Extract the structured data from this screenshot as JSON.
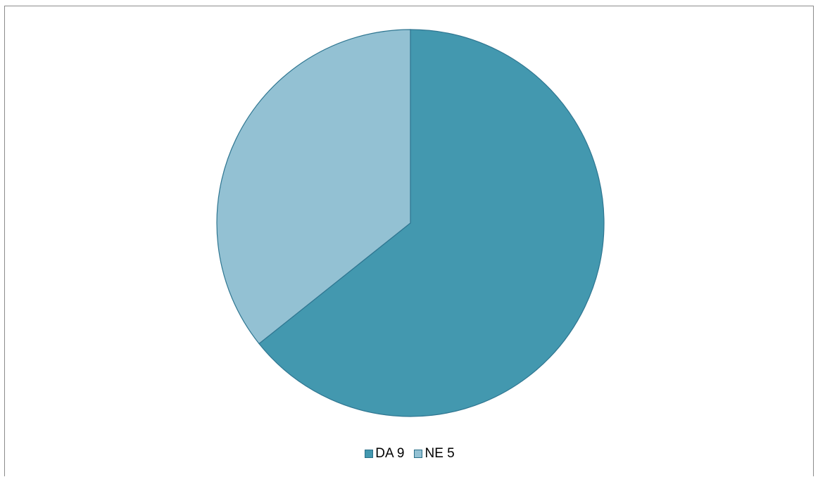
{
  "chart_data": {
    "type": "pie",
    "title": "",
    "slices": [
      {
        "label": "DA",
        "value": 9,
        "color": "#4398af"
      },
      {
        "label": "NE",
        "value": 5,
        "color": "#93c1d3"
      }
    ],
    "legend": {
      "placement": "bottom",
      "items": [
        {
          "label": "DA 9",
          "color": "#4398af"
        },
        {
          "label": "NE 5",
          "color": "#93c1d3"
        }
      ]
    },
    "slice_border_color": "#2f7691"
  }
}
